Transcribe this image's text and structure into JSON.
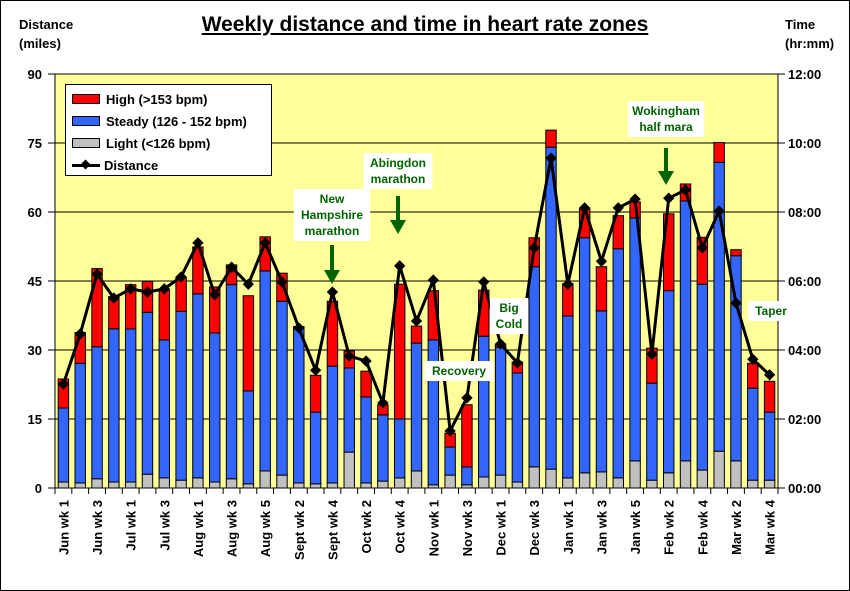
{
  "header": {
    "title": "Weekly distance and time in heart rate zones",
    "left_axis_title": [
      "Distance",
      "(miles)"
    ],
    "right_axis_title": [
      "Time",
      "(hr:mm)"
    ]
  },
  "colors": {
    "high": "#ff0000",
    "steady": "#3366ff",
    "light": "#c0c0c0",
    "plot_bg": "#ffff99",
    "annotation": "#006400"
  },
  "legend": [
    {
      "key": "high",
      "label": "High (>153 bpm)"
    },
    {
      "key": "steady",
      "label": "Steady (126 - 152 bpm)"
    },
    {
      "key": "light",
      "label": "Light (<126 bpm)"
    },
    {
      "key": "distance",
      "label": "Distance"
    }
  ],
  "annotations": [
    {
      "lines": [
        "New",
        "Hampshire",
        "marathon"
      ],
      "week": "Sept wk4",
      "arrow": true
    },
    {
      "lines": [
        "Abingdon",
        "marathon"
      ],
      "week": "Oct wk4",
      "arrow": true
    },
    {
      "lines": [
        "Recovery"
      ],
      "week": "Nov wk2",
      "arrow": false
    },
    {
      "lines": [
        "Big",
        "Cold"
      ],
      "week": "Dec wk1",
      "arrow": false
    },
    {
      "lines": [
        "Wokingham",
        "half mara"
      ],
      "week": "Feb wk2",
      "arrow": true
    },
    {
      "lines": [
        "Taper"
      ],
      "week": "Mar wk4",
      "arrow": false
    }
  ],
  "chart_data": {
    "type": "bar",
    "stacked": true,
    "title": "Weekly distance and time in heart rate zones",
    "ylabel": "Distance (miles)",
    "y2label": "Time (hr:mm)",
    "ylim": [
      0,
      90
    ],
    "yticks": [
      0,
      15,
      30,
      45,
      60,
      75,
      90
    ],
    "y2lim_hours": [
      0,
      12
    ],
    "y2ticks": [
      "00:00",
      "02:00",
      "04:00",
      "06:00",
      "08:00",
      "10:00",
      "12:00"
    ],
    "grid": true,
    "legend_position": "top-left",
    "categories": [
      "Jun wk 1",
      "Jun wk 2",
      "Jun wk 3",
      "Jun wk 4",
      "Jul wk 1",
      "Jul wk 2",
      "Jul wk 3",
      "Jul wk 4",
      "Aug wk 1",
      "Aug wk 2",
      "Aug wk 3",
      "Aug wk 4",
      "Aug wk 5",
      "Sept wk 1",
      "Sept wk 2",
      "Sept wk 3",
      "Sept wk 4",
      "Oct wk 1",
      "Oct wk 2",
      "Oct wk 3",
      "Oct wk 4",
      "Oct wk 5",
      "Nov wk 1",
      "Nov wk 2",
      "Nov wk 3",
      "Nov wk 4",
      "Dec wk 1",
      "Dec wk 2",
      "Dec wk 3",
      "Dec wk 4",
      "Jan wk 1",
      "Jan wk 2",
      "Jan wk 3",
      "Jan wk 4",
      "Jan wk 5",
      "Feb wk 1",
      "Feb wk 2",
      "Feb wk 3",
      "Feb wk 4",
      "Mar wk 1",
      "Mar wk 2",
      "Mar wk 3",
      "Mar wk 4"
    ],
    "shown_tick_labels": [
      "Jun wk 1",
      "Jun wk 3",
      "Jul wk 1",
      "Jul wk 3",
      "Aug wk 1",
      "Aug wk 3",
      "Aug wk 5",
      "Sept wk 2",
      "Sept wk 4",
      "Oct wk 2",
      "Oct wk 4",
      "Nov wk 1",
      "Nov wk 3",
      "Dec wk 1",
      "Dec wk 3",
      "Jan wk 1",
      "Jan wk 3",
      "Jan wk 5",
      "Feb wk 2",
      "Feb wk 4",
      "Mar wk 2",
      "Mar wk 4"
    ],
    "series": [
      {
        "name": "Light (<126 bpm)",
        "key": "light",
        "unit": "miles-equivalent (7.5 = 1 hr)",
        "values": [
          1.3,
          1.1,
          2.0,
          1.3,
          1.3,
          3.0,
          2.2,
          1.7,
          2.2,
          1.3,
          2.0,
          0.9,
          3.7,
          2.8,
          1.1,
          0.9,
          1.1,
          7.8,
          1.1,
          1.5,
          2.2,
          3.7,
          0.7,
          2.8,
          0.7,
          2.4,
          2.8,
          1.3,
          4.6,
          4.1,
          2.2,
          3.3,
          3.5,
          2.2,
          5.9,
          1.7,
          3.3,
          5.9,
          3.9,
          8.0,
          5.9,
          1.7,
          1.7
        ]
      },
      {
        "name": "Steady (126 - 152 bpm)",
        "key": "steady",
        "unit": "miles-equivalent (7.5 = 1 hr)",
        "values": [
          16.1,
          26.0,
          28.7,
          33.3,
          33.3,
          35.2,
          30.0,
          36.7,
          40.0,
          32.4,
          42.2,
          20.2,
          43.5,
          37.8,
          33.5,
          15.6,
          25.4,
          18.3,
          18.7,
          14.4,
          12.8,
          27.8,
          31.5,
          6.1,
          3.9,
          30.6,
          27.8,
          23.7,
          43.5,
          70.0,
          35.2,
          51.1,
          35.0,
          49.8,
          52.8,
          21.1,
          39.6,
          56.5,
          40.4,
          62.8,
          44.6,
          20.0,
          14.8
        ]
      },
      {
        "name": "High (>153 bpm)",
        "key": "high",
        "unit": "miles-equivalent (7.5 = 1 hr)",
        "values": [
          6.3,
          6.7,
          17.0,
          7.0,
          9.6,
          6.7,
          10.9,
          7.4,
          10.2,
          10.0,
          4.3,
          20.7,
          7.4,
          6.1,
          0.5,
          8.0,
          14.1,
          3.7,
          5.6,
          2.2,
          29.3,
          3.7,
          10.7,
          3.0,
          13.5,
          10.0,
          0.7,
          2.4,
          6.3,
          3.7,
          7.0,
          6.3,
          9.6,
          7.2,
          3.5,
          7.6,
          16.7,
          3.7,
          10.2,
          4.3,
          1.3,
          5.4,
          6.7
        ]
      },
      {
        "name": "Distance",
        "key": "distance",
        "type": "line",
        "unit": "miles",
        "values": [
          22.6,
          33.5,
          46.5,
          41.3,
          43.3,
          42.6,
          43.3,
          45.9,
          53.3,
          42.0,
          48.0,
          44.3,
          53.3,
          44.8,
          34.8,
          25.6,
          42.6,
          28.7,
          27.6,
          18.5,
          48.3,
          36.3,
          45.2,
          12.4,
          19.6,
          44.8,
          31.3,
          27.2,
          52.2,
          71.7,
          44.3,
          60.9,
          49.3,
          60.9,
          62.8,
          29.1,
          63.0,
          64.8,
          52.2,
          60.2,
          40.2,
          28.0,
          24.6
        ]
      }
    ]
  }
}
